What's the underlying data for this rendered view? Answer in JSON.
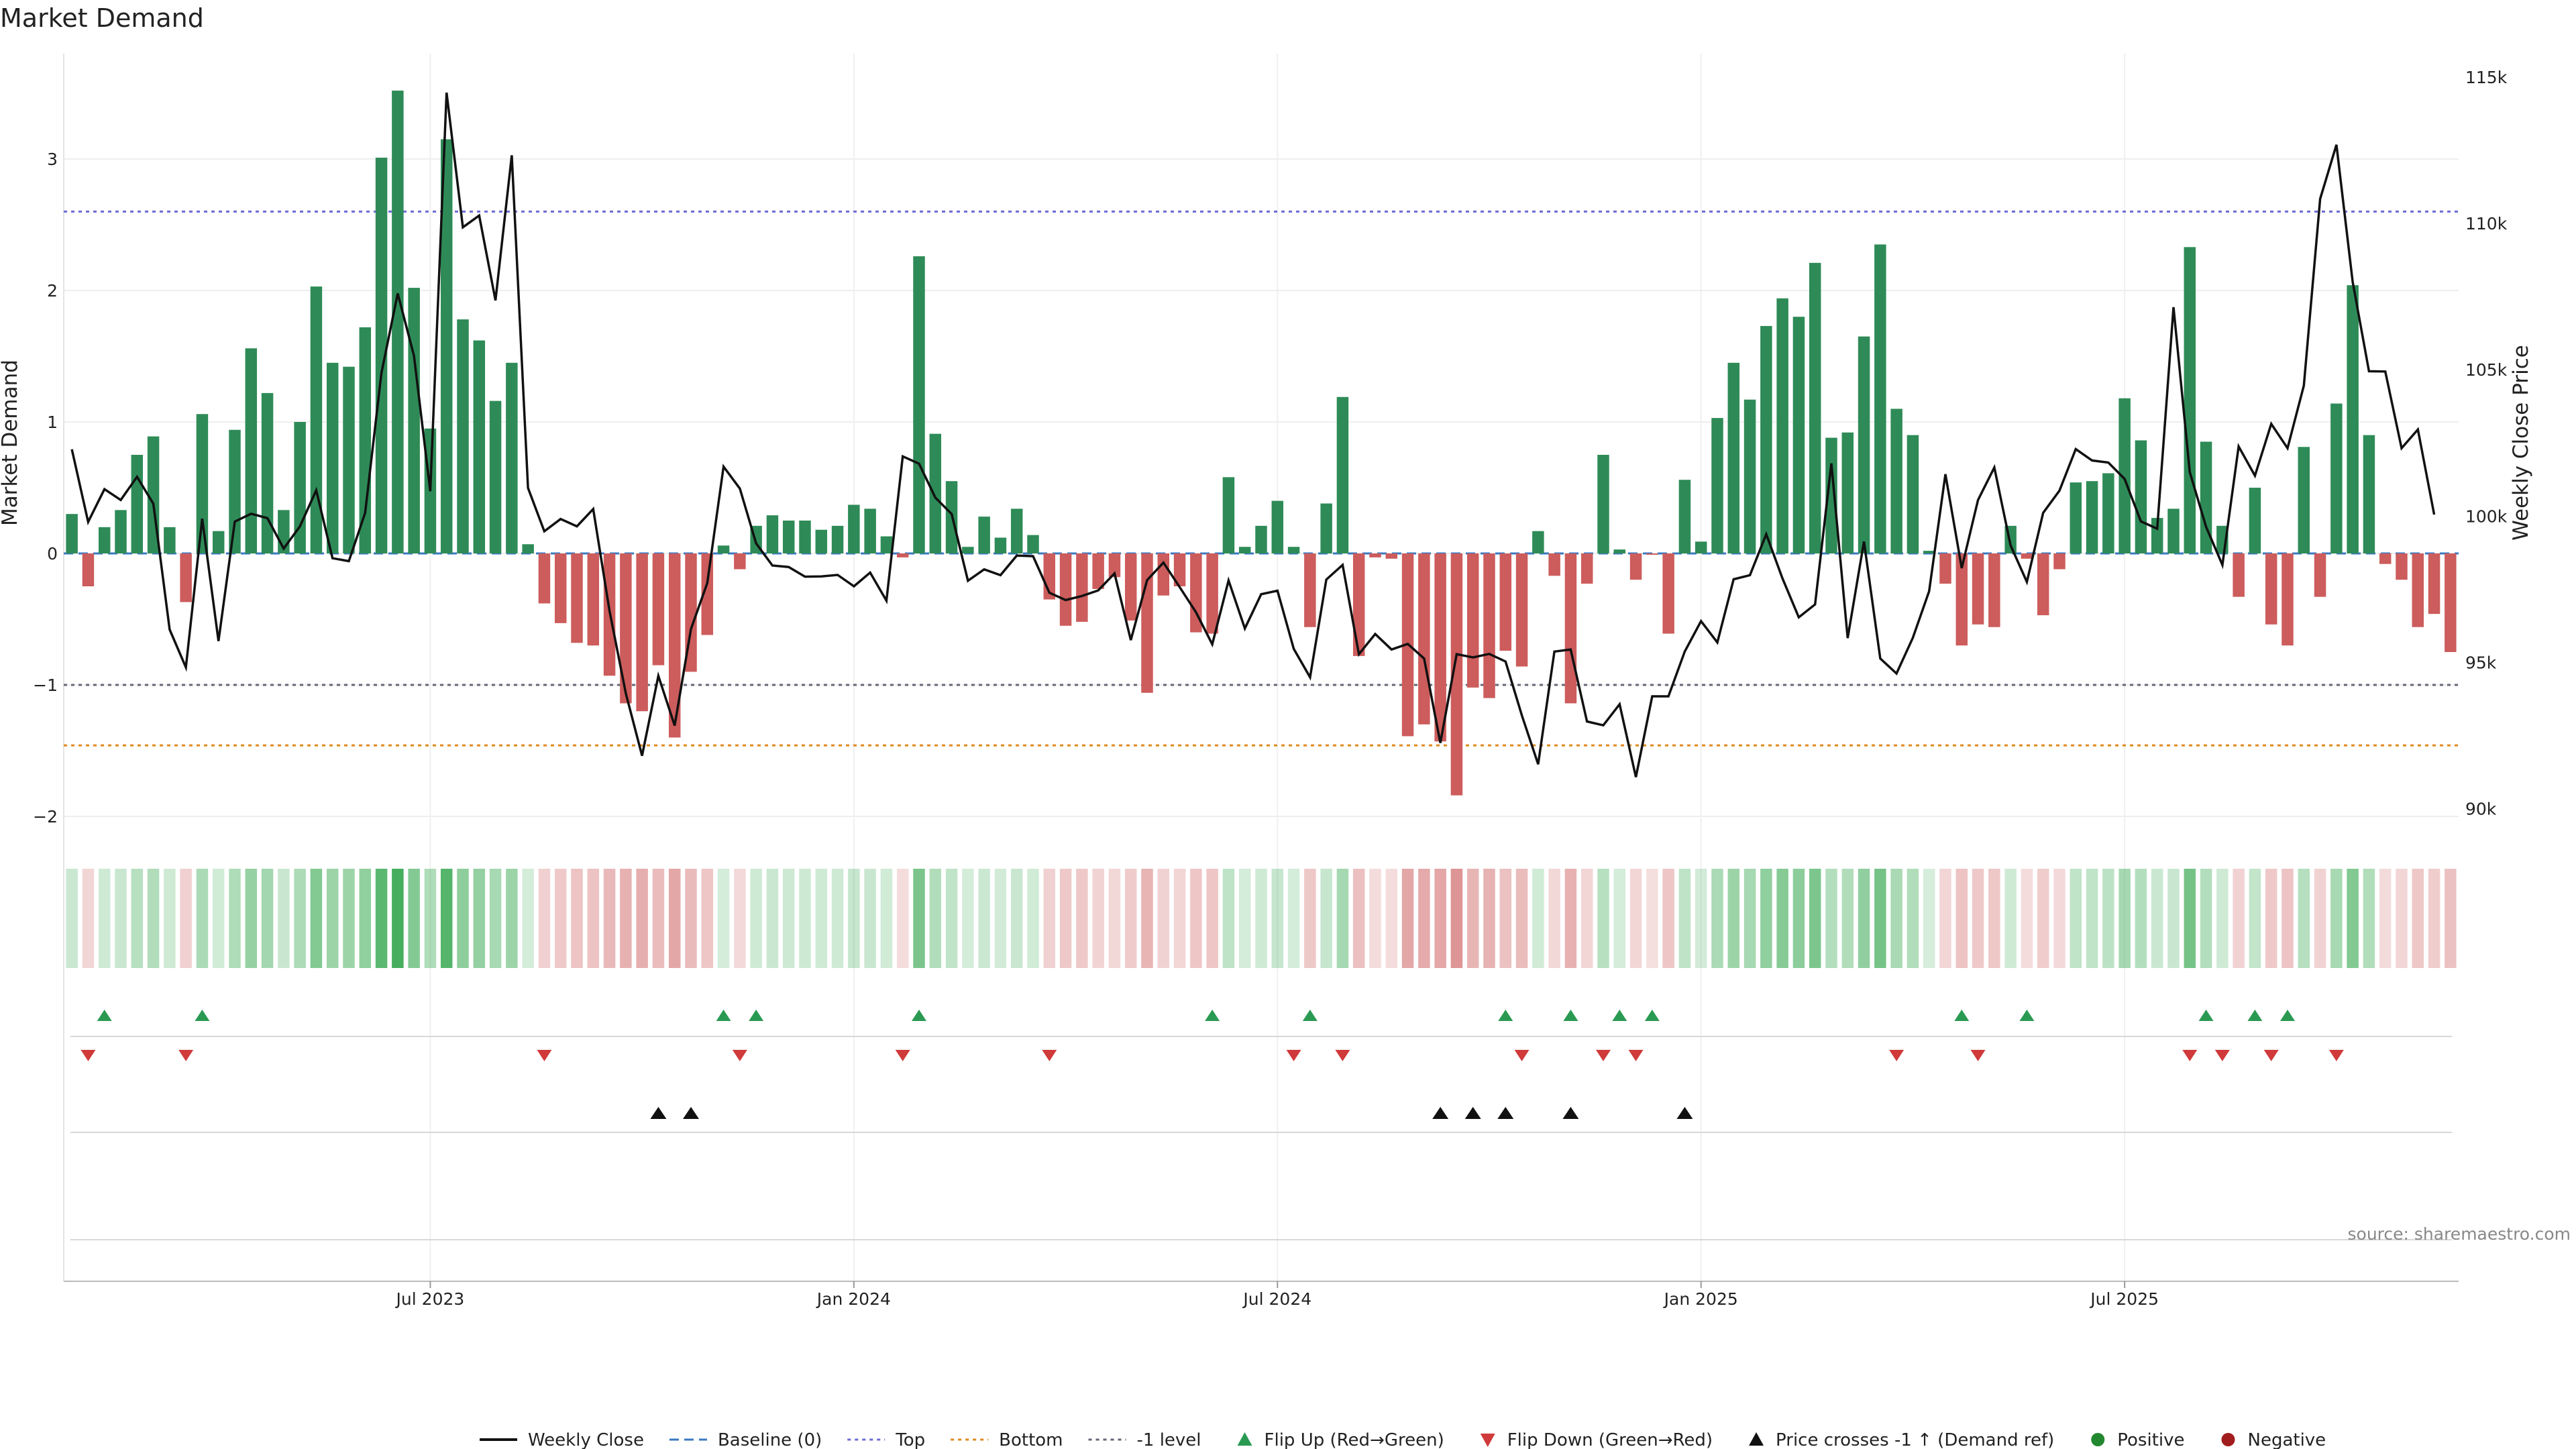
{
  "chart_data": {
    "type": "bar+line",
    "title": "Market Demand",
    "ylabel_left": "Market Demand",
    "ylabel_right": "Weekly Close Price",
    "ylim_left": [
      -2.3,
      3.65
    ],
    "ylim_right": [
      90000,
      115000
    ],
    "left_ticks": [
      {
        "v": 3,
        "label": "3"
      },
      {
        "v": 2,
        "label": "2"
      },
      {
        "v": 1,
        "label": "1"
      },
      {
        "v": 0,
        "label": "0"
      },
      {
        "v": -1,
        "label": "−1"
      },
      {
        "v": -2,
        "label": "−2"
      }
    ],
    "right_ticks": [
      {
        "v": 115000,
        "label": "115k"
      },
      {
        "v": 110000,
        "label": "110k"
      },
      {
        "v": 105000,
        "label": "105k"
      },
      {
        "v": 100000,
        "label": "100k"
      },
      {
        "v": 95000,
        "label": "95k"
      },
      {
        "v": 90000,
        "label": "90k"
      }
    ],
    "x_ticks": [
      {
        "index": 22,
        "label": "Jul 2023"
      },
      {
        "index": 48,
        "label": "Jan 2024"
      },
      {
        "index": 74,
        "label": "Jul 2024"
      },
      {
        "index": 100,
        "label": "Jan 2025"
      },
      {
        "index": 126,
        "label": "Jul 2025"
      }
    ],
    "reference_lines": [
      {
        "name": "Top",
        "value": 2.6,
        "color": "#6b6bd6"
      },
      {
        "name": "Bottom",
        "value": -1.46,
        "color": "#e08a1e"
      },
      {
        "name": "-1 level",
        "value": -1.0,
        "color": "#666677"
      },
      {
        "name": "Baseline (0)",
        "value": 0,
        "color": "#3a78c2"
      }
    ],
    "demand": [
      0.3,
      -0.25,
      0.2,
      0.33,
      0.75,
      0.89,
      0.2,
      -0.37,
      1.06,
      0.17,
      0.94,
      1.56,
      1.22,
      0.33,
      1.0,
      2.03,
      1.45,
      1.42,
      1.72,
      3.01,
      3.52,
      2.02,
      0.95,
      3.15,
      1.78,
      1.62,
      1.16,
      1.45,
      0.07,
      -0.38,
      -0.53,
      -0.68,
      -0.7,
      -0.93,
      -1.14,
      -1.2,
      -0.85,
      -1.4,
      -0.9,
      -0.62,
      0.06,
      -0.12,
      0.21,
      0.29,
      0.25,
      0.25,
      0.18,
      0.21,
      0.37,
      0.34,
      0.13,
      -0.03,
      2.26,
      0.91,
      0.55,
      0.05,
      0.28,
      0.12,
      0.34,
      0.14,
      -0.35,
      -0.55,
      -0.52,
      -0.27,
      -0.18,
      -0.51,
      -1.06,
      -0.32,
      -0.25,
      -0.6,
      -0.61,
      0.58,
      0.05,
      0.21,
      0.4,
      0.05,
      -0.56,
      0.38,
      1.19,
      -0.78,
      -0.03,
      -0.04,
      -1.39,
      -1.3,
      -1.43,
      -1.84,
      -1.02,
      -1.1,
      -0.74,
      -0.86,
      0.17,
      -0.17,
      -1.14,
      -0.23,
      0.75,
      0.03,
      -0.2,
      -0.01,
      -0.61,
      0.56,
      0.09,
      1.03,
      1.45,
      1.17,
      1.73,
      1.94,
      1.8,
      2.21,
      0.88,
      0.92,
      1.65,
      2.35,
      1.1,
      0.9,
      0.02,
      -0.23,
      -0.7,
      -0.54,
      -0.56,
      0.21,
      -0.04,
      -0.47,
      -0.12,
      0.54,
      0.55,
      0.61,
      1.18,
      0.86,
      0.27,
      0.34,
      2.33,
      0.85,
      0.21,
      -0.33,
      0.5,
      -0.54,
      -0.7,
      0.81,
      -0.33,
      1.14,
      2.04,
      0.9,
      -0.08,
      -0.2,
      -0.56,
      -0.46,
      -0.75
    ],
    "weekly_close": [
      102280,
      99800,
      100920,
      100550,
      101340,
      100420,
      96120,
      94830,
      99910,
      95730,
      99810,
      100080,
      99930,
      98890,
      99650,
      100880,
      98560,
      98460,
      100110,
      104890,
      107610,
      105480,
      100850,
      114470,
      109870,
      110270,
      107370,
      112330,
      100960,
      99480,
      99900,
      99650,
      100240,
      96760,
      93940,
      91810,
      94540,
      92840,
      96140,
      97710,
      101690,
      100940,
      99070,
      98310,
      98260,
      97930,
      97940,
      97990,
      97600,
      98070,
      97110,
      102040,
      101790,
      100630,
      100070,
      97790,
      98180,
      97980,
      98650,
      98630,
      97380,
      97130,
      97270,
      97460,
      98040,
      95760,
      97810,
      98410,
      97570,
      96710,
      95620,
      97800,
      96160,
      97330,
      97450,
      95460,
      94490,
      97830,
      98330,
      95280,
      95970,
      95440,
      95630,
      95130,
      92250,
      95280,
      95170,
      95290,
      95030,
      93190,
      91520,
      95370,
      95440,
      92980,
      92850,
      93570,
      91080,
      93840,
      93840,
      95370,
      96410,
      95680,
      97840,
      97980,
      99380,
      97870,
      96540,
      96980,
      101800,
      95830,
      99130,
      95130,
      94620,
      95840,
      97430,
      101430,
      98220,
      100550,
      101660,
      99000,
      97750,
      100110,
      100870,
      102290,
      101900,
      101830,
      101270,
      99820,
      99570,
      107140,
      101500,
      99630,
      98330,
      102380,
      101380,
      103150,
      102320,
      104460,
      110840,
      112690,
      108000,
      104950,
      104940,
      102320,
      102960,
      100050
    ],
    "flip_up_indices": [
      2,
      8,
      40,
      42,
      52,
      70,
      76,
      88,
      92,
      95,
      97,
      116,
      120,
      131,
      134,
      136
    ],
    "flip_down_indices": [
      1,
      7,
      29,
      41,
      51,
      60,
      75,
      78,
      89,
      94,
      96,
      112,
      117,
      130,
      132,
      135,
      139
    ],
    "price_cross_indices": [
      36,
      38,
      84,
      86,
      88,
      92,
      99
    ],
    "legend": [
      {
        "kind": "line",
        "label": "Weekly Close",
        "color": "#111111"
      },
      {
        "kind": "dash",
        "label": "Baseline (0)",
        "color": "#3a78c2"
      },
      {
        "kind": "dot",
        "label": "Top",
        "color": "#6b6bd6"
      },
      {
        "kind": "dot",
        "label": "Bottom",
        "color": "#e08a1e"
      },
      {
        "kind": "dot",
        "label": "-1 level",
        "color": "#666677"
      },
      {
        "kind": "tri-up",
        "label": "Flip Up (Red→Green)",
        "color": "#2a9a52"
      },
      {
        "kind": "tri-down",
        "label": "Flip Down (Green→Red)",
        "color": "#d03a3a"
      },
      {
        "kind": "tri-up",
        "label": "Price crosses -1 ↑ (Demand ref)",
        "color": "#111111"
      },
      {
        "kind": "circle",
        "label": "Positive",
        "color": "#22882f"
      },
      {
        "kind": "circle",
        "label": "Negative",
        "color": "#a11d1d"
      }
    ],
    "source": "source: sharemaestro.com",
    "colors": {
      "positive": "#2e8b57",
      "negative": "#cd5c5c",
      "line": "#111111"
    }
  }
}
